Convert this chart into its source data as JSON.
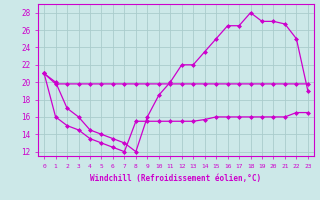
{
  "background_color": "#cce8e8",
  "grid_color": "#aacccc",
  "line_color": "#cc00cc",
  "xlabel": "Windchill (Refroidissement éolien,°C)",
  "ylim": [
    11.5,
    29
  ],
  "xlim": [
    -0.5,
    23.5
  ],
  "yticks": [
    12,
    14,
    16,
    18,
    20,
    22,
    24,
    26,
    28
  ],
  "xticks": [
    0,
    1,
    2,
    3,
    4,
    5,
    6,
    7,
    8,
    9,
    10,
    11,
    12,
    13,
    14,
    15,
    16,
    17,
    18,
    19,
    20,
    21,
    22,
    23
  ],
  "line1_x": [
    0,
    1,
    2,
    3,
    4,
    5,
    6,
    7,
    8,
    9,
    10,
    11,
    12,
    13,
    14,
    15,
    16,
    17,
    18,
    19,
    20,
    21,
    22,
    23
  ],
  "line1_y": [
    21,
    19.8,
    19.8,
    19.8,
    19.8,
    19.8,
    19.8,
    19.8,
    19.8,
    19.8,
    19.8,
    19.8,
    19.8,
    19.8,
    19.8,
    19.8,
    19.8,
    19.8,
    19.8,
    19.8,
    19.8,
    19.8,
    19.8,
    19.8
  ],
  "line2_x": [
    0,
    1,
    2,
    3,
    4,
    5,
    6,
    7,
    8,
    9,
    10,
    11,
    12,
    13,
    14,
    15,
    16,
    17,
    18,
    19,
    20,
    21,
    22,
    23
  ],
  "line2_y": [
    21,
    20,
    17,
    16,
    14.5,
    14,
    13.5,
    13,
    12,
    16,
    18.5,
    20,
    22,
    22,
    23.5,
    25,
    26.5,
    26.5,
    28,
    27,
    27,
    26.7,
    25,
    19
  ],
  "line3_x": [
    0,
    1,
    2,
    3,
    4,
    5,
    6,
    7,
    8,
    9,
    10,
    11,
    12,
    13,
    14,
    15,
    16,
    17,
    18,
    19,
    20,
    21,
    22,
    23
  ],
  "line3_y": [
    21,
    16,
    15,
    14.5,
    13.5,
    13,
    12.5,
    12,
    15.5,
    15.5,
    15.5,
    15.5,
    15.5,
    15.5,
    15.7,
    16,
    16,
    16,
    16,
    16,
    16,
    16,
    16.5,
    16.5
  ]
}
